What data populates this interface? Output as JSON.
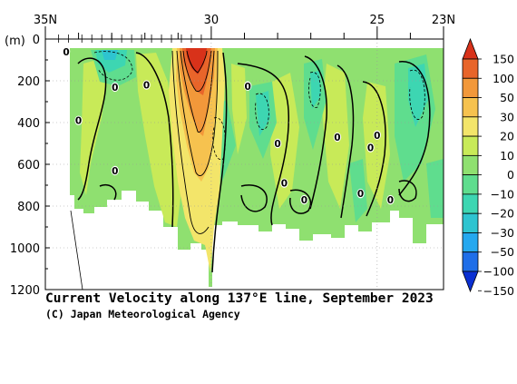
{
  "chart_data": {
    "type": "heatmap",
    "title": "Current Velocity along 137°E line, September 2023",
    "credit": "(C) Japan Meteorological Agency",
    "x_axis": {
      "range_degN": [
        35,
        23
      ],
      "tick_labels": [
        {
          "value": 35,
          "label": "35N"
        },
        {
          "value": 30,
          "label": "30"
        },
        {
          "value": 25,
          "label": "25"
        },
        {
          "value": 23,
          "label": "23N"
        }
      ]
    },
    "y_axis": {
      "unit_label": "(m)",
      "range_m": [
        0,
        1200
      ],
      "tick_labels": [
        {
          "value": 0,
          "label": "0"
        },
        {
          "value": 200,
          "label": "200"
        },
        {
          "value": 400,
          "label": "400"
        },
        {
          "value": 600,
          "label": "600"
        },
        {
          "value": 800,
          "label": "800"
        },
        {
          "value": 1000,
          "label": "1000"
        },
        {
          "value": 1200,
          "label": "1200"
        }
      ]
    },
    "colorbar": {
      "labels": [
        "150",
        "100",
        "50",
        "30",
        "20",
        "10",
        "0",
        "−10",
        "−20",
        "−30",
        "−50",
        "−100",
        "−150"
      ],
      "colors": [
        "#0a2fd2",
        "#1f6ee8",
        "#25a8ef",
        "#2ec4d0",
        "#3dd6b2",
        "#5fdd8e",
        "#8fe070",
        "#c8ea58",
        "#f3e56a",
        "#f6c24f",
        "#f2983a",
        "#e8652a",
        "#d8321a"
      ]
    },
    "contour_labels": [
      {
        "lat": 34.37,
        "depth": 60,
        "text": "0"
      },
      {
        "lat": 32.9,
        "depth": 230,
        "text": "0"
      },
      {
        "lat": 32.9,
        "depth": 630,
        "text": "0"
      },
      {
        "lat": 31.95,
        "depth": 220,
        "text": "0"
      },
      {
        "lat": 28.9,
        "depth": 225,
        "text": "0"
      },
      {
        "lat": 28.0,
        "depth": 500,
        "text": "0"
      },
      {
        "lat": 27.8,
        "depth": 690,
        "text": "0"
      },
      {
        "lat": 27.2,
        "depth": 770,
        "text": "0"
      },
      {
        "lat": 26.2,
        "depth": 470,
        "text": "0"
      },
      {
        "lat": 25.5,
        "depth": 740,
        "text": "0"
      },
      {
        "lat": 25.0,
        "depth": 460,
        "text": "0"
      },
      {
        "lat": 25.2,
        "depth": 520,
        "text": "0"
      },
      {
        "lat": 24.6,
        "depth": 770,
        "text": "0"
      },
      {
        "lat": 34.0,
        "depth": 390,
        "text": "0"
      }
    ],
    "grid": "dotted",
    "legend_placement": "right"
  }
}
